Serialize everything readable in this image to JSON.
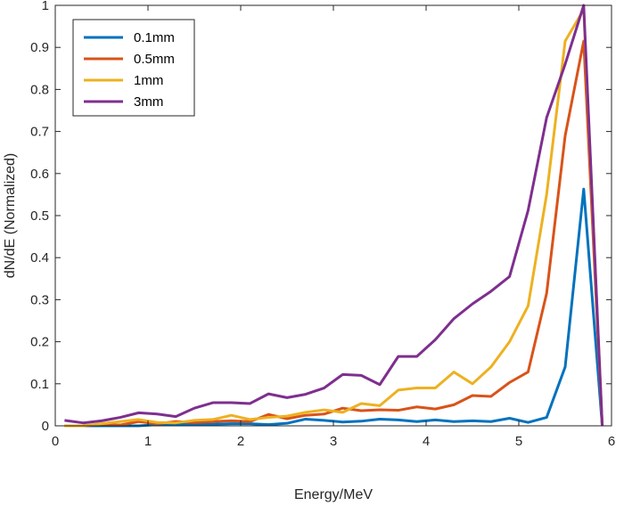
{
  "chart_data": {
    "type": "line",
    "xlabel": "Energy/MeV",
    "ylabel": "dN/dE (Normalized)",
    "xlim": [
      0,
      6
    ],
    "ylim": [
      0,
      1
    ],
    "xticks": [
      0,
      1,
      2,
      3,
      4,
      5,
      6
    ],
    "yticks": [
      0,
      0.1,
      0.2,
      0.3,
      0.4,
      0.5,
      0.6,
      0.7,
      0.8,
      0.9,
      1
    ],
    "xtick_labels": [
      "0",
      "1",
      "2",
      "3",
      "4",
      "5",
      "6"
    ],
    "ytick_labels": [
      "0",
      "0.1",
      "0.2",
      "0.3",
      "0.4",
      "0.5",
      "0.6",
      "0.7",
      "0.8",
      "0.9",
      "1"
    ],
    "grid": false,
    "legend_position": "top-left",
    "x": [
      0.1,
      0.3,
      0.5,
      0.7,
      0.9,
      1.1,
      1.3,
      1.5,
      1.7,
      1.9,
      2.1,
      2.3,
      2.5,
      2.7,
      2.9,
      3.1,
      3.3,
      3.5,
      3.7,
      3.9,
      4.1,
      4.3,
      4.5,
      4.7,
      4.9,
      5.1,
      5.3,
      5.5,
      5.7,
      5.9
    ],
    "series": [
      {
        "name": "0.1mm",
        "color": "#0072BD",
        "values": [
          0.0,
          0.0,
          0.0,
          0.0,
          0.0,
          0.003,
          0.003,
          0.004,
          0.004,
          0.005,
          0.005,
          0.003,
          0.006,
          0.016,
          0.013,
          0.009,
          0.011,
          0.016,
          0.014,
          0.01,
          0.014,
          0.01,
          0.012,
          0.01,
          0.018,
          0.008,
          0.02,
          0.14,
          0.563,
          0.0
        ]
      },
      {
        "name": "0.5mm",
        "color": "#D95319",
        "values": [
          0.0,
          0.0,
          0.003,
          0.002,
          0.01,
          0.005,
          0.01,
          0.008,
          0.01,
          0.012,
          0.01,
          0.027,
          0.017,
          0.025,
          0.028,
          0.042,
          0.036,
          0.038,
          0.037,
          0.045,
          0.04,
          0.05,
          0.072,
          0.07,
          0.103,
          0.128,
          0.315,
          0.69,
          0.915,
          0.0
        ]
      },
      {
        "name": "1mm",
        "color": "#EDB120",
        "values": [
          0.0,
          0.0,
          0.005,
          0.01,
          0.015,
          0.008,
          0.007,
          0.013,
          0.015,
          0.025,
          0.015,
          0.02,
          0.023,
          0.032,
          0.038,
          0.032,
          0.053,
          0.048,
          0.085,
          0.09,
          0.09,
          0.128,
          0.1,
          0.14,
          0.2,
          0.285,
          0.55,
          0.915,
          0.99,
          0.0
        ]
      },
      {
        "name": "3mm",
        "color": "#7E2F8E",
        "values": [
          0.013,
          0.007,
          0.012,
          0.02,
          0.031,
          0.028,
          0.022,
          0.042,
          0.055,
          0.055,
          0.053,
          0.076,
          0.067,
          0.075,
          0.09,
          0.122,
          0.12,
          0.098,
          0.165,
          0.165,
          0.205,
          0.255,
          0.29,
          0.32,
          0.355,
          0.512,
          0.733,
          0.86,
          1.0,
          0.0
        ]
      }
    ]
  }
}
